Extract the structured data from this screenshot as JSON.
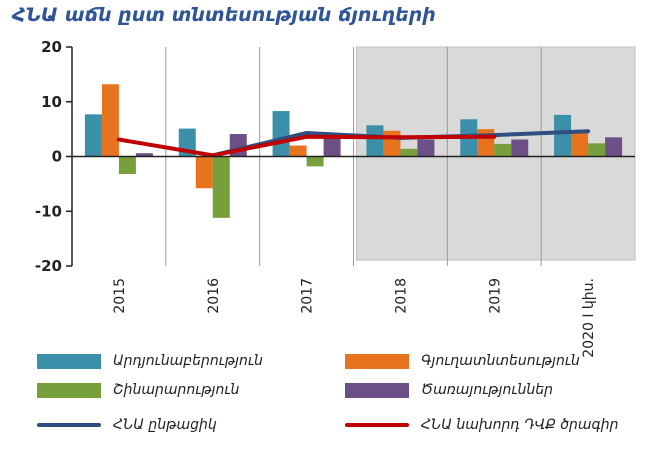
{
  "title": "ՀՆԱ աճն ըստ տնտեսության ճյուղերի",
  "chart_data": {
    "type": "bar",
    "categories": [
      "2015",
      "2016",
      "2017",
      "2018",
      "2019",
      "2020 I կիս."
    ],
    "ylim": [
      -20,
      20
    ],
    "yticks": [
      20,
      10,
      0,
      -10,
      -20
    ],
    "shaded_categories": [
      "2018",
      "2019",
      "2020 I կիս."
    ],
    "grid": "vertical separators",
    "legend_position": "bottom",
    "series": [
      {
        "name": "Արդյունաբերություն",
        "kind": "bar",
        "color": "#3b8fa8",
        "values": [
          7.7,
          5.1,
          8.3,
          5.7,
          6.8,
          7.6
        ]
      },
      {
        "name": "Գյուղատնտեսություն",
        "kind": "bar",
        "color": "#e8731f",
        "values": [
          13.2,
          -5.8,
          2.0,
          4.7,
          5.0,
          4.4
        ]
      },
      {
        "name": "Շինարարություն",
        "kind": "bar",
        "color": "#77a03c",
        "values": [
          -3.2,
          -11.2,
          -1.8,
          1.4,
          2.3,
          2.4
        ]
      },
      {
        "name": "Ծառայություններ",
        "kind": "bar",
        "color": "#6b4f86",
        "values": [
          0.6,
          4.1,
          3.4,
          3.1,
          3.1,
          3.5
        ]
      },
      {
        "name": "ՀՆԱ ընթացիկ",
        "kind": "line",
        "color": "#2e4f80",
        "values": [
          null,
          0.2,
          4.3,
          3.4,
          3.9,
          4.6
        ]
      },
      {
        "name": "ՀՆԱ նախորդ ԴՎՔ ծրագիր",
        "kind": "line",
        "color": "#c00000",
        "values": [
          3.1,
          0.2,
          3.6,
          3.5,
          3.6,
          null
        ]
      }
    ]
  }
}
